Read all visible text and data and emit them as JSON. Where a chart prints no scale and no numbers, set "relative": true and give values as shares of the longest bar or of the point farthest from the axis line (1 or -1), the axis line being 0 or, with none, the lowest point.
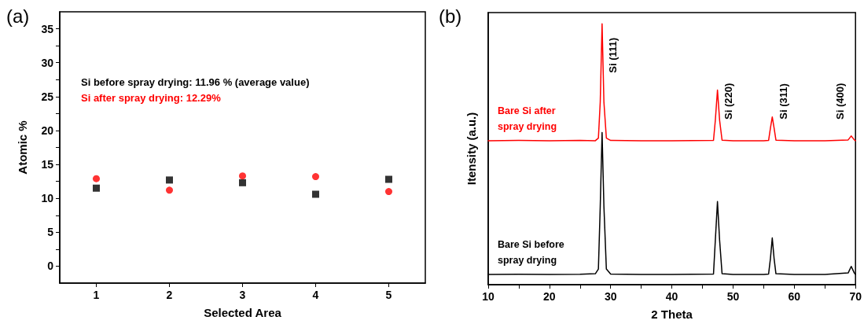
{
  "chart_data": [
    {
      "type": "scatter",
      "title": "(a)",
      "xlabel": "Selected Area",
      "ylabel": "Atomic %",
      "x": [
        1,
        2,
        3,
        4,
        5
      ],
      "xlim": [
        0.5,
        5.5
      ],
      "xticks": [
        1,
        2,
        3,
        4,
        5
      ],
      "ylim": [
        -2.5,
        37.5
      ],
      "yticks": [
        0,
        {
          "value": 2.5,
          "label": null
        },
        5,
        {
          "value": 7.5,
          "label": null
        },
        10,
        {
          "value": 12.5,
          "label": null
        },
        15,
        {
          "value": 17.5,
          "label": null
        },
        20,
        {
          "value": 22.5,
          "label": null
        },
        25,
        {
          "value": 27.5,
          "label": null
        },
        30,
        {
          "value": 32.5,
          "label": null
        },
        35
      ],
      "grid": false,
      "legend": false,
      "annotations": [
        "Si before spray drying: 11.96 % (average value)",
        "Si after spray drying: 12.29%"
      ],
      "series": [
        {
          "color": "#000000",
          "marker": "square",
          "values": [
            11.5,
            12.7,
            12.3,
            10.6,
            12.8
          ]
        },
        {
          "color": "#ff0000",
          "marker": "circle",
          "values": [
            12.9,
            11.2,
            13.3,
            13.2,
            11.0
          ]
        }
      ]
    },
    {
      "type": "line",
      "title": "(b)",
      "xlabel": "2 Theta",
      "ylabel": "Itensity (a.u.)",
      "relative": true,
      "xlim": [
        10,
        70
      ],
      "xticks": [
        10,
        {
          "value": 15,
          "label": null
        },
        20,
        {
          "value": 25,
          "label": null
        },
        30,
        {
          "value": 35,
          "label": null
        },
        40,
        {
          "value": 45,
          "label": null
        },
        50,
        {
          "value": 55,
          "label": null
        },
        60,
        {
          "value": 65,
          "label": null
        },
        70
      ],
      "grid": false,
      "legend": false,
      "marker": "none",
      "line_style": "solid",
      "x": [
        10,
        15,
        20,
        25,
        27.5,
        28.0,
        28.3,
        28.6,
        28.9,
        29.3,
        30,
        35,
        40,
        46.8,
        47.1,
        47.45,
        47.8,
        48.2,
        50,
        55,
        55.8,
        56.1,
        56.4,
        56.7,
        57,
        60,
        65,
        68.8,
        69.3,
        69.8,
        70
      ],
      "annotations": [
        "Si (111)",
        "Si (220)",
        "Si (311)",
        "Si (400)"
      ],
      "series": [
        {
          "name": "Bare Si after spray drying",
          "color": "#ff0000",
          "values": [
            0.552,
            0.553,
            0.552,
            0.553,
            0.552,
            0.562,
            0.7,
            1.0,
            0.7,
            0.562,
            0.553,
            0.552,
            0.552,
            0.553,
            0.63,
            0.746,
            0.63,
            0.554,
            0.552,
            0.552,
            0.553,
            0.6,
            0.643,
            0.6,
            0.554,
            0.552,
            0.552,
            0.555,
            0.57,
            0.555,
            0.552
          ]
        },
        {
          "name": "Bare Si before spray drying",
          "color": "#000000",
          "values": [
            0.039,
            0.04,
            0.039,
            0.04,
            0.042,
            0.06,
            0.3,
            0.583,
            0.3,
            0.06,
            0.041,
            0.039,
            0.039,
            0.041,
            0.17,
            0.319,
            0.17,
            0.042,
            0.039,
            0.039,
            0.041,
            0.1,
            0.179,
            0.1,
            0.042,
            0.039,
            0.039,
            0.045,
            0.07,
            0.045,
            0.039
          ]
        }
      ]
    }
  ]
}
